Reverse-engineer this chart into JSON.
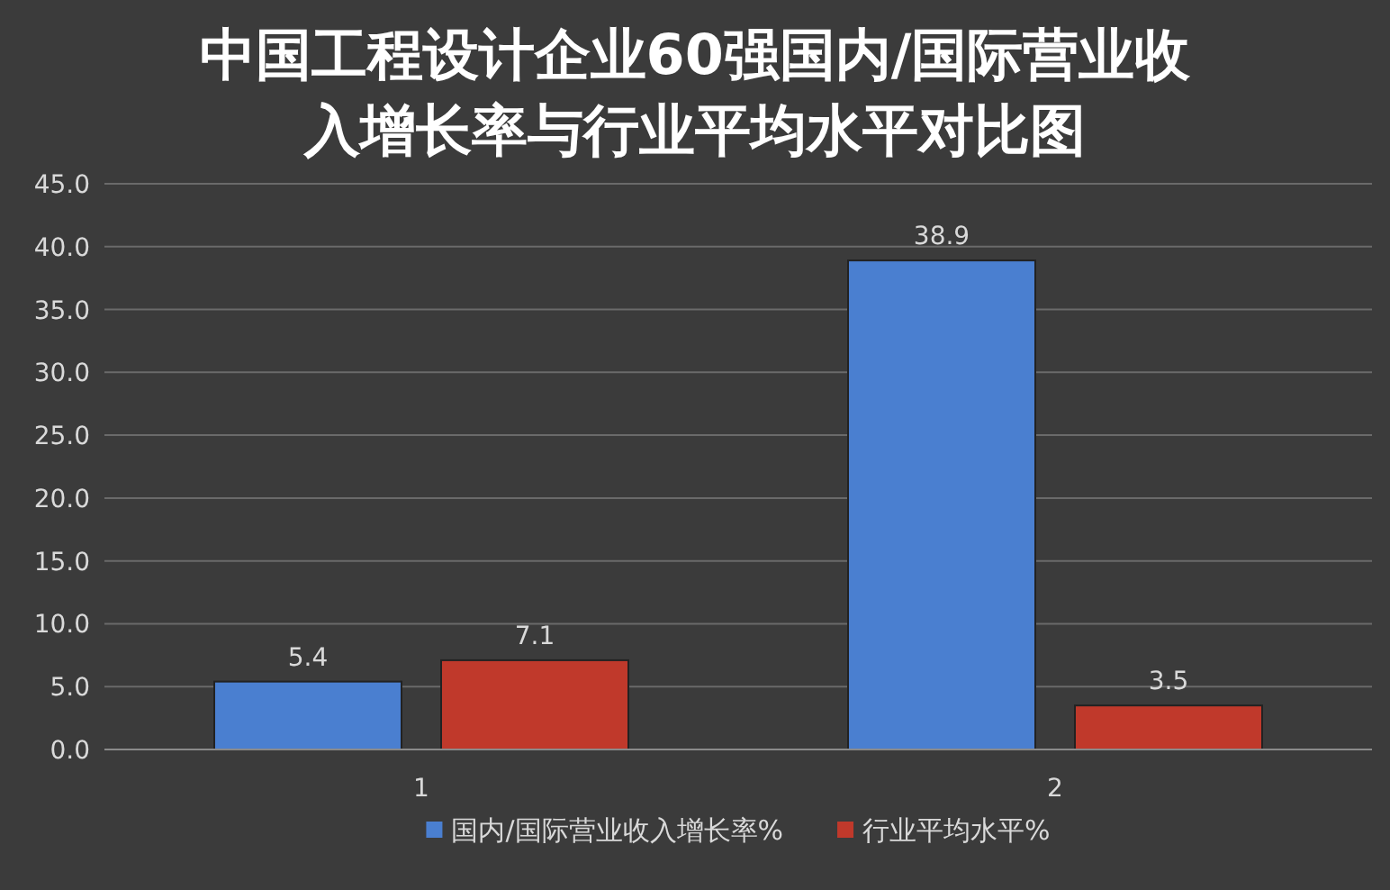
{
  "chart_data": {
    "type": "bar",
    "title": "中国工程设计企业60强国内/国际营业收入增长率与行业平均水平对比图",
    "categories": [
      "1",
      "2"
    ],
    "series": [
      {
        "name": "国内/国际营业收入增长率%",
        "color": "#4a7fd0",
        "values": [
          5.4,
          38.9
        ]
      },
      {
        "name": "行业平均水平%",
        "color": "#c0392b",
        "values": [
          7.1,
          3.5
        ]
      }
    ],
    "ylim": [
      0,
      45
    ],
    "yticks": [
      {
        "value": 0,
        "label": "0.0"
      },
      {
        "value": 5,
        "label": "5.0"
      },
      {
        "value": 10,
        "label": "10.0"
      },
      {
        "value": 15,
        "label": "15.0"
      },
      {
        "value": 20,
        "label": "20.0"
      },
      {
        "value": 25,
        "label": "25.0"
      },
      {
        "value": 30,
        "label": "30.0"
      },
      {
        "value": 35,
        "label": "35.0"
      },
      {
        "value": 40,
        "label": "40.0"
      },
      {
        "value": 45,
        "label": "45.0"
      }
    ],
    "grid": "y",
    "data_labels": true,
    "legend": "bottom"
  }
}
